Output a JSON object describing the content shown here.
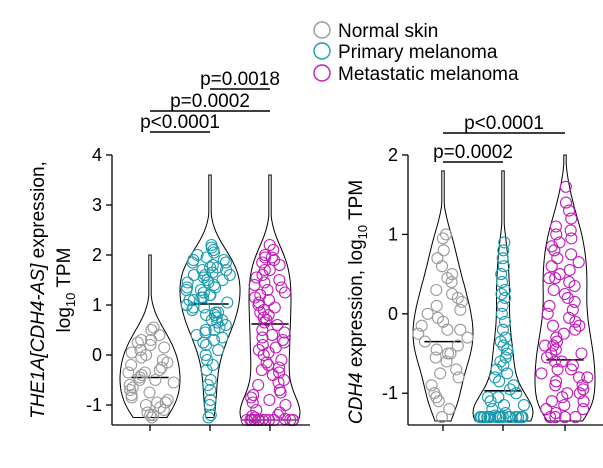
{
  "legend": {
    "position": "top-right",
    "entries": [
      {
        "label": "Normal skin",
        "color": "#9a9a9a"
      },
      {
        "label": "Primary melanoma",
        "color": "#1a9bb0"
      },
      {
        "label": "Metastatic melanoma",
        "color": "#c21bbb"
      }
    ]
  },
  "chart_data": [
    {
      "type": "violin",
      "ylabel_italic": "THE1A[CDH4-AS]",
      "ylabel_rest": " expression,",
      "ylabel_line2": "log",
      "ylabel_sub": "10",
      "ylabel_unit": " TPM",
      "ylim": [
        -1.4,
        4.0
      ],
      "yticks": [
        -1,
        0,
        1,
        2,
        3,
        4
      ],
      "groups": [
        {
          "name": "Normal skin",
          "median": -0.45,
          "min": -1.25,
          "max": 2.0,
          "points": [
            0.55,
            0.5,
            0.4,
            0.3,
            0.25,
            0.15,
            0.1,
            0.05,
            0.0,
            -0.05,
            -0.1,
            -0.15,
            -0.2,
            -0.25,
            -0.3,
            -0.35,
            -0.4,
            -0.45,
            -0.5,
            -0.55,
            -0.6,
            -0.65,
            -0.7,
            -0.75,
            -0.8,
            -0.85,
            -0.9,
            -0.95,
            -1.0,
            -1.05,
            -1.1,
            -1.15,
            -1.2,
            -1.2,
            -1.25,
            0.2,
            -0.35,
            -0.5,
            0.3,
            -0.95
          ]
        },
        {
          "name": "Primary melanoma",
          "median": 1.02,
          "min": -1.25,
          "max": 3.6,
          "points": [
            2.2,
            2.1,
            2.0,
            1.95,
            1.9,
            1.85,
            1.8,
            1.75,
            1.7,
            1.65,
            1.6,
            1.55,
            1.5,
            1.45,
            1.4,
            1.35,
            1.3,
            1.25,
            1.2,
            1.15,
            1.1,
            1.05,
            1.0,
            0.95,
            0.9,
            0.85,
            0.8,
            0.75,
            0.7,
            0.65,
            0.6,
            0.55,
            0.5,
            0.45,
            0.4,
            0.3,
            0.2,
            0.1,
            0.0,
            -0.1,
            -0.3,
            -0.5,
            -0.7,
            -0.9,
            -1.0,
            -1.2,
            -1.25,
            1.6,
            1.3,
            1.0,
            0.8,
            1.9,
            2.05,
            1.7,
            1.45,
            1.2,
            0.95,
            0.7,
            0.35,
            -0.2,
            1.85,
            1.5,
            1.15,
            0.85,
            0.5,
            1.1,
            1.35,
            1.6,
            1.75,
            2.15,
            0.25,
            -0.6
          ]
        },
        {
          "name": "Metastatic melanoma",
          "median": 0.62,
          "min": -1.3,
          "max": 3.6,
          "points": [
            2.2,
            2.1,
            2.0,
            1.95,
            1.9,
            1.85,
            1.8,
            1.7,
            1.6,
            1.5,
            1.4,
            1.35,
            1.3,
            1.2,
            1.1,
            1.0,
            0.9,
            0.8,
            0.7,
            0.6,
            0.5,
            0.4,
            0.3,
            0.2,
            0.1,
            0.0,
            -0.1,
            -0.2,
            -0.3,
            -0.4,
            -0.5,
            -0.6,
            -0.7,
            -0.8,
            -0.9,
            -1.0,
            -1.1,
            -1.2,
            -1.25,
            -1.28,
            -1.3,
            -1.3,
            -1.3,
            -1.3,
            -1.3,
            -1.3,
            -1.3,
            -1.3,
            -1.3,
            -1.3,
            -1.3,
            -1.3,
            -1.3,
            -1.3,
            -1.3,
            1.7,
            1.55,
            1.25,
            1.05,
            0.85,
            0.65,
            0.45,
            0.25,
            0.05,
            -0.15,
            -0.35,
            -0.55,
            -0.75,
            -0.95,
            -1.15,
            1.95,
            1.45,
            0.95,
            0.35,
            -0.25,
            -0.85,
            -1.22,
            1.15,
            0.75,
            0.15
          ]
        }
      ],
      "brackets": [
        {
          "label": "p<0.0001",
          "from": 0,
          "to": 1,
          "level": 0
        },
        {
          "label": "p=0.0002",
          "from": 0,
          "to": 2,
          "level": 1
        },
        {
          "label": "p=0.0018",
          "from": 1,
          "to": 2,
          "level": 2
        }
      ]
    },
    {
      "type": "violin",
      "ylabel_italic": "CDH4",
      "ylabel_rest": " expression, log",
      "ylabel_sub": "10",
      "ylabel_unit": " TPM",
      "ylim": [
        -1.4,
        2.0
      ],
      "yticks": [
        -1,
        0,
        1,
        2
      ],
      "groups": [
        {
          "name": "Normal skin",
          "median": -0.35,
          "min": -1.35,
          "max": 1.8,
          "points": [
            1.0,
            0.95,
            0.8,
            0.7,
            0.6,
            0.5,
            0.45,
            0.4,
            0.3,
            0.25,
            0.2,
            0.1,
            0.05,
            0.0,
            -0.05,
            -0.1,
            -0.15,
            -0.2,
            -0.25,
            -0.3,
            -0.35,
            -0.4,
            -0.45,
            -0.5,
            -0.55,
            -0.6,
            -0.7,
            -0.8,
            -0.9,
            -1.0,
            -1.05,
            -1.1,
            -1.2,
            -1.3,
            -0.2,
            -0.5,
            0.15,
            -0.75
          ]
        },
        {
          "name": "Primary melanoma",
          "median": -0.97,
          "min": -1.35,
          "max": 1.8,
          "points": [
            0.9,
            0.8,
            0.6,
            0.5,
            0.4,
            0.3,
            0.2,
            0.1,
            0.0,
            -0.1,
            -0.2,
            -0.3,
            -0.4,
            -0.5,
            -0.6,
            -0.7,
            -0.8,
            -0.9,
            -1.0,
            -1.05,
            -1.1,
            -1.15,
            -1.2,
            -1.25,
            -1.28,
            -1.3,
            -1.3,
            -1.3,
            -1.3,
            -1.3,
            -1.3,
            -1.3,
            -1.3,
            -1.3,
            -1.3,
            -1.3,
            -1.3,
            -1.3,
            -1.3,
            -1.3,
            -1.3,
            -1.3,
            -1.3,
            -1.3,
            -1.3,
            -1.3,
            -1.3,
            -1.3,
            -1.3,
            -0.85,
            -0.95,
            -1.05,
            -1.15,
            -0.65,
            -0.75,
            -0.55,
            -0.45,
            -0.35,
            0.25,
            0.7
          ]
        },
        {
          "name": "Metastatic melanoma",
          "median": -0.58,
          "min": -1.35,
          "max": 2.0,
          "points": [
            1.6,
            1.4,
            1.3,
            1.2,
            1.1,
            1.0,
            0.9,
            0.85,
            0.8,
            0.7,
            0.6,
            0.5,
            0.45,
            0.4,
            0.3,
            0.2,
            0.1,
            0.0,
            -0.1,
            -0.2,
            -0.3,
            -0.4,
            -0.5,
            -0.6,
            -0.7,
            -0.8,
            -0.9,
            -1.0,
            -1.1,
            -1.2,
            -1.25,
            -1.3,
            -1.3,
            -1.3,
            -1.3,
            0.65,
            0.35,
            0.15,
            -0.05,
            -0.25,
            -0.45,
            -0.65,
            -0.85,
            -1.05,
            -1.15,
            0.95,
            0.55,
            0.25,
            -0.15,
            -0.35,
            -0.55,
            -0.75,
            -0.95,
            1.05,
            0.75,
            0.05,
            -0.5,
            -0.7,
            -0.9,
            -1.0,
            -1.1,
            -1.2,
            0.45,
            -0.15,
            -0.6,
            -0.8,
            -0.4
          ]
        }
      ],
      "brackets": [
        {
          "label": "p=0.0002",
          "from": 0,
          "to": 1,
          "level": 0
        },
        {
          "label": "p<0.0001",
          "from": 0,
          "to": 2,
          "level": 1
        }
      ]
    }
  ]
}
